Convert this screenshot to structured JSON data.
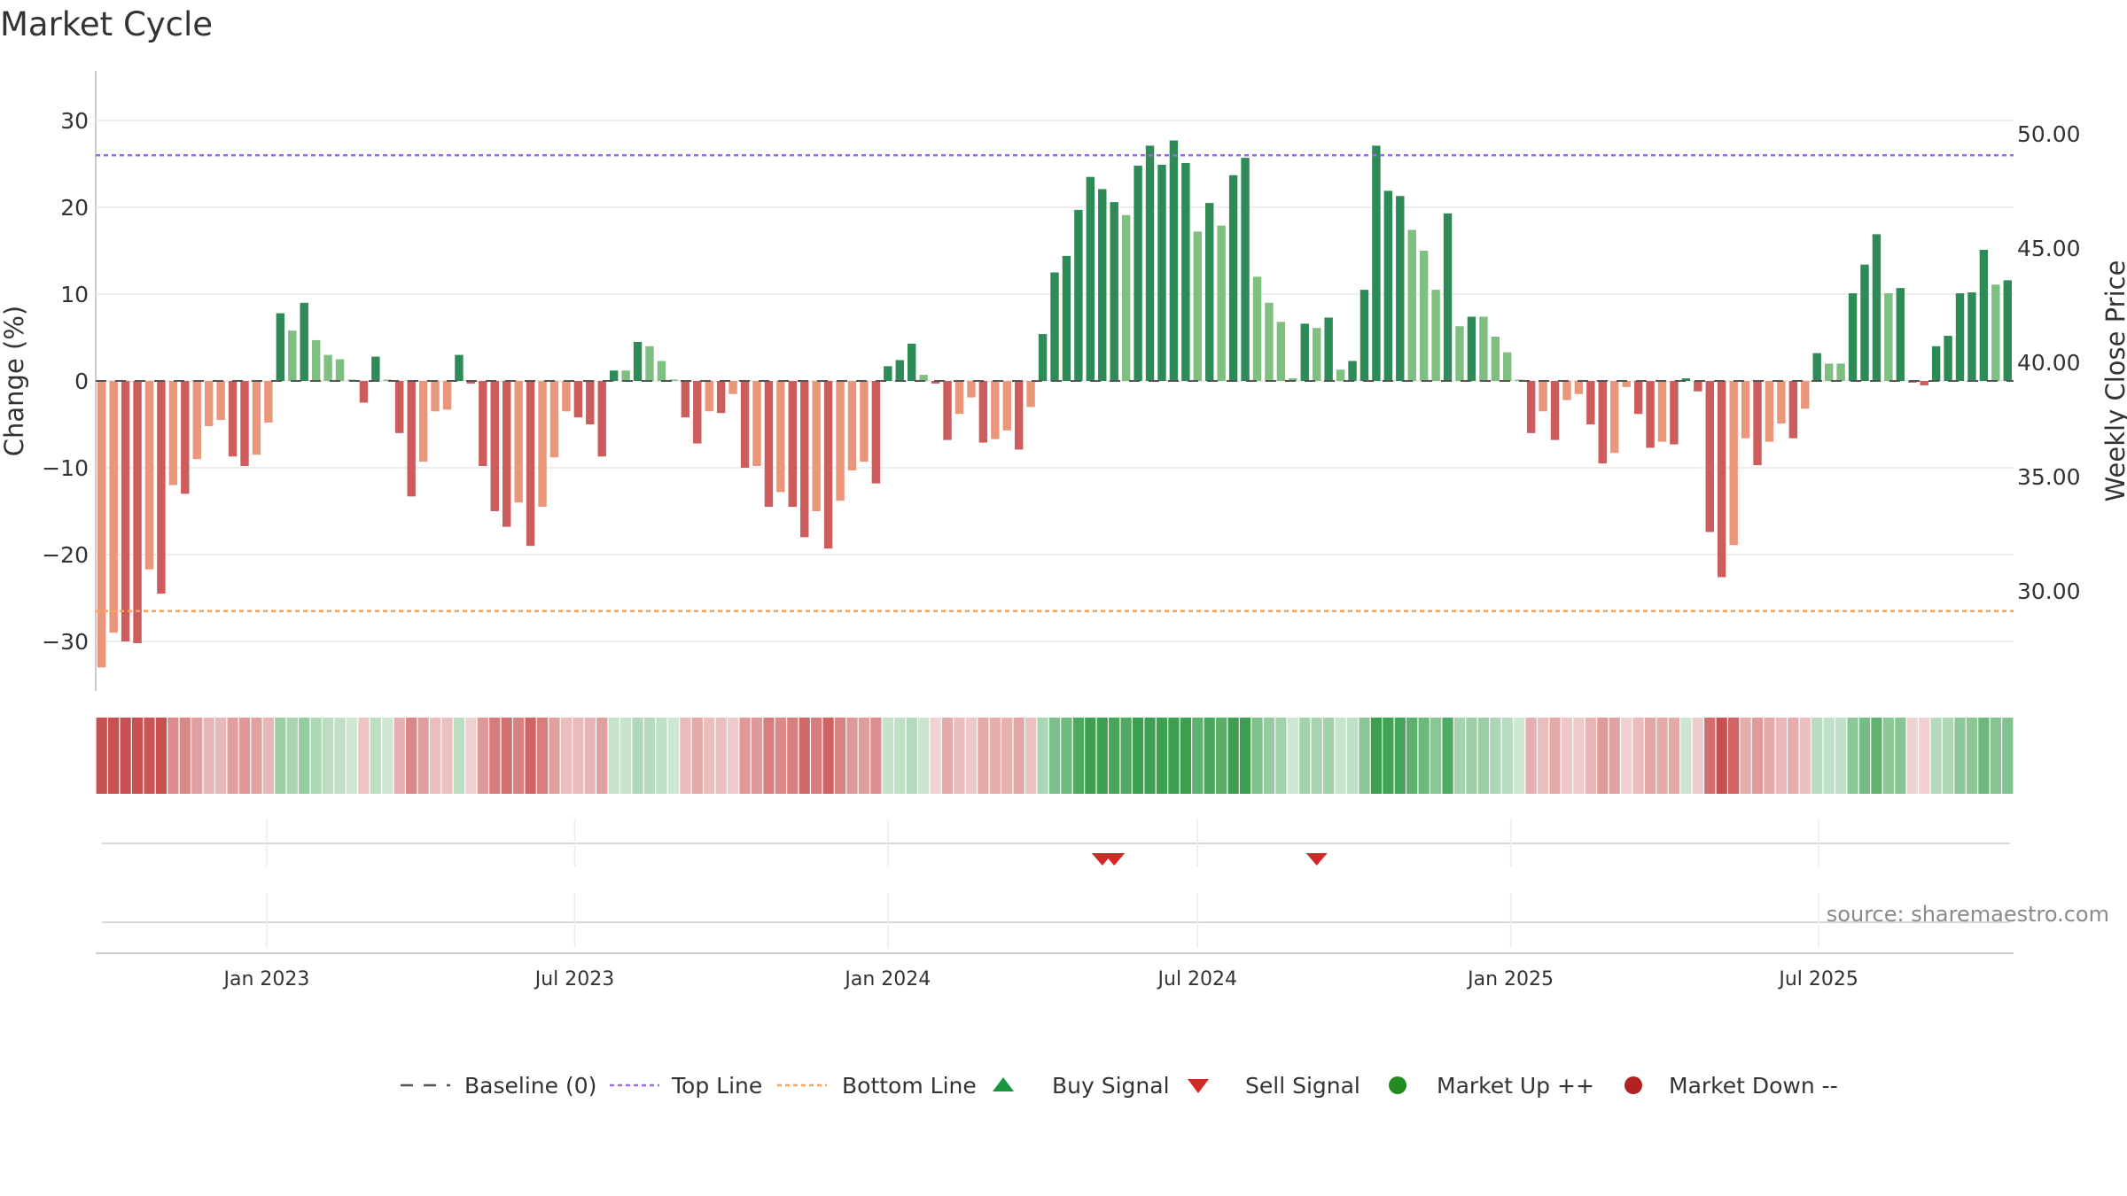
{
  "title": "Market Cycle",
  "source": "source: sharemaestro.com",
  "colors": {
    "up_dark": "#2e8b57",
    "up_light": "#7fbf7f",
    "down_dark": "#cd5c5c",
    "down_light": "#e9967a",
    "top_line": "#9370db",
    "bottom_line": "#f4a460",
    "buy": "#1a9641",
    "sell": "#d62728",
    "market_up": "#228b22",
    "market_down": "#b22222"
  },
  "chart_data": {
    "type": "bar",
    "start_date": "2022-09-26",
    "interval_days": 7,
    "values": [
      -33,
      -29,
      -30,
      -30.2,
      -21.7,
      -24.5,
      -12,
      -13,
      -9,
      -5.2,
      -4.5,
      -8.7,
      -9.8,
      -8.5,
      -4.8,
      7.8,
      5.8,
      9,
      4.7,
      3,
      2.5,
      0,
      -2.5,
      2.8,
      0,
      -6,
      -13.3,
      -9.3,
      -3.5,
      -3.3,
      3,
      -0.3,
      -9.8,
      -15,
      -16.8,
      -14,
      -19,
      -14.5,
      -8.8,
      -3.5,
      -4.2,
      -5,
      -8.7,
      1.2,
      1.2,
      4.5,
      4,
      2.3,
      0,
      -4.2,
      -7.2,
      -3.5,
      -3.7,
      -1.5,
      -10,
      -9.8,
      -14.5,
      -12.8,
      -14.5,
      -18,
      -15,
      -19.3,
      -13.8,
      -10.3,
      -9.3,
      -11.8,
      1.7,
      2.4,
      4.3,
      0.7,
      -0.3,
      -6.8,
      -3.8,
      -1.9,
      -7.1,
      -6.7,
      -5.7,
      -7.9,
      -3,
      5.4,
      12.5,
      14.4,
      19.7,
      23.5,
      22.1,
      20.6,
      19.1,
      24.8,
      27.1,
      24.9,
      27.7,
      25.1,
      17.2,
      20.5,
      17.9,
      23.7,
      25.7,
      12,
      9,
      6.8,
      0.3,
      6.6,
      6.1,
      7.3,
      1.3,
      2.3,
      10.5,
      27.1,
      21.9,
      21.3,
      17.4,
      15,
      10.5,
      19.3,
      6.3,
      7.4,
      7.4,
      5.1,
      3.3,
      0,
      -6,
      -3.5,
      -6.8,
      -2.2,
      -1.5,
      -5,
      -9.5,
      -8.3,
      -0.7,
      -3.8,
      -7.7,
      -7,
      -7.3,
      0.3,
      -1.2,
      -17.4,
      -22.6,
      -18.9,
      -6.6,
      -9.7,
      -7,
      -4.9,
      -6.6,
      -3.2,
      3.2,
      2,
      2,
      10.1,
      13.4,
      16.9,
      10.1,
      10.7,
      -0.2,
      -0.5,
      4,
      5.2,
      10.1,
      10.2,
      15.1,
      11.1,
      11.6
    ],
    "y_left": {
      "label": "Change (%)",
      "min": -35,
      "max": 35,
      "ticks": [
        30,
        20,
        10,
        0,
        -10,
        -20,
        -30
      ]
    },
    "y_right": {
      "label": "Weekly Close Price",
      "ticks": [
        "50.00",
        "45.00",
        "40.00",
        "35.00",
        "30.00"
      ]
    },
    "x_ticks": [
      "Jan 2023",
      "Jul 2023",
      "Jan 2024",
      "Jul 2024",
      "Jan 2025",
      "Jul 2025"
    ],
    "top_line": 26,
    "bottom_line": -26.5,
    "sell_signals": [
      "2024-05-06",
      "2024-05-13",
      "2024-09-09"
    ],
    "buy_signals": [],
    "grid": true
  },
  "legend": [
    {
      "key": "baseline",
      "label": "Baseline (0)"
    },
    {
      "key": "top",
      "label": "Top Line"
    },
    {
      "key": "bottom",
      "label": "Bottom Line"
    },
    {
      "key": "buy",
      "label": "Buy Signal"
    },
    {
      "key": "sell",
      "label": "Sell Signal"
    },
    {
      "key": "mup",
      "label": "Market Up ++"
    },
    {
      "key": "mdown",
      "label": "Market Down --"
    }
  ]
}
